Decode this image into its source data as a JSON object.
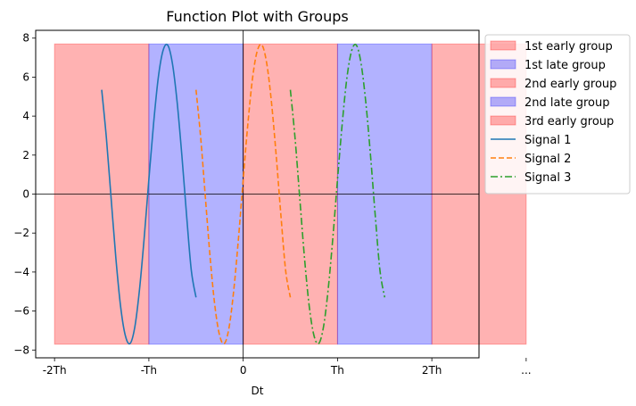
{
  "chart_data": {
    "type": "line",
    "title": "Function Plot with Groups",
    "xlabel": "Dt",
    "ylabel": "",
    "xlim": [
      -2.2,
      2.5
    ],
    "ylim": [
      -8.4,
      8.4
    ],
    "grid": false,
    "legend_position": "outside-right-top",
    "x_ticks": [
      {
        "value": -2,
        "label": "-2Th"
      },
      {
        "value": -1,
        "label": "-Th"
      },
      {
        "value": 0,
        "label": "0"
      },
      {
        "value": 1,
        "label": "Th"
      },
      {
        "value": 2,
        "label": "2Th"
      },
      {
        "value": 3,
        "label": "..."
      }
    ],
    "y_ticks": [
      {
        "value": 8,
        "label": "8"
      },
      {
        "value": 6,
        "label": "6"
      },
      {
        "value": 4,
        "label": "4"
      },
      {
        "value": 2,
        "label": "2"
      },
      {
        "value": 0,
        "label": "0"
      },
      {
        "value": -2,
        "label": "−2"
      },
      {
        "value": -4,
        "label": "−4"
      },
      {
        "value": -6,
        "label": "−6"
      },
      {
        "value": -8,
        "label": "−8"
      }
    ],
    "bands": [
      {
        "name": "1st early group",
        "x": [
          -2,
          -1
        ],
        "y": [
          -7.7,
          7.7
        ],
        "color": "#ff0000"
      },
      {
        "name": "1st late group",
        "x": [
          -1,
          0
        ],
        "y": [
          -7.7,
          7.7
        ],
        "color": "#0000ff"
      },
      {
        "name": "2nd early group",
        "x": [
          0,
          1
        ],
        "y": [
          -7.7,
          7.7
        ],
        "color": "#ff0000"
      },
      {
        "name": "2nd late group",
        "x": [
          1,
          2
        ],
        "y": [
          -7.7,
          7.7
        ],
        "color": "#0000ff"
      },
      {
        "name": "3rd early group",
        "x": [
          2,
          3
        ],
        "y": [
          -7.7,
          7.7
        ],
        "color": "#ff0000"
      }
    ],
    "series": [
      {
        "name": "Signal 1",
        "color": "#1f77b4",
        "style": "solid",
        "x": [
          -1.5,
          -1.45,
          -1.4,
          -1.35,
          -1.3,
          -1.25,
          -1.2,
          -1.15,
          -1.1,
          -1.05,
          -1.0,
          -0.95,
          -0.9,
          -0.85,
          -0.8,
          -0.75,
          -0.7,
          -0.65,
          -0.6,
          -0.55,
          -0.5
        ],
        "y": [
          5.35,
          2.86,
          -0.23,
          -3.28,
          -5.75,
          -7.25,
          -7.67,
          -6.85,
          -4.93,
          -2.27,
          0.75,
          3.62,
          5.98,
          7.36,
          7.64,
          6.69,
          4.7,
          1.97,
          -1.1,
          -3.92,
          -5.3
        ]
      },
      {
        "name": "Signal 2",
        "color": "#ff7f0e",
        "style": "dashed",
        "x": [
          -0.5,
          -0.45,
          -0.4,
          -0.35,
          -0.3,
          -0.25,
          -0.2,
          -0.15,
          -0.1,
          -0.05,
          0.0,
          0.05,
          0.1,
          0.15,
          0.2,
          0.25,
          0.3,
          0.35,
          0.4,
          0.45,
          0.5
        ],
        "y": [
          5.35,
          2.86,
          -0.23,
          -3.28,
          -5.75,
          -7.25,
          -7.67,
          -6.85,
          -4.93,
          -2.27,
          0.75,
          3.62,
          5.98,
          7.36,
          7.64,
          6.69,
          4.7,
          1.97,
          -1.1,
          -3.92,
          -5.3
        ]
      },
      {
        "name": "Signal 3",
        "color": "#2ca02c",
        "style": "dashdot",
        "x": [
          0.5,
          0.55,
          0.6,
          0.65,
          0.7,
          0.75,
          0.8,
          0.85,
          0.9,
          0.95,
          1.0,
          1.05,
          1.1,
          1.15,
          1.2,
          1.25,
          1.3,
          1.35,
          1.4,
          1.45,
          1.5
        ],
        "y": [
          5.35,
          2.86,
          -0.23,
          -3.28,
          -5.75,
          -7.25,
          -7.67,
          -6.85,
          -4.93,
          -2.27,
          0.75,
          3.62,
          5.98,
          7.36,
          7.64,
          6.69,
          4.7,
          1.97,
          -1.1,
          -3.92,
          -5.3
        ]
      }
    ]
  }
}
